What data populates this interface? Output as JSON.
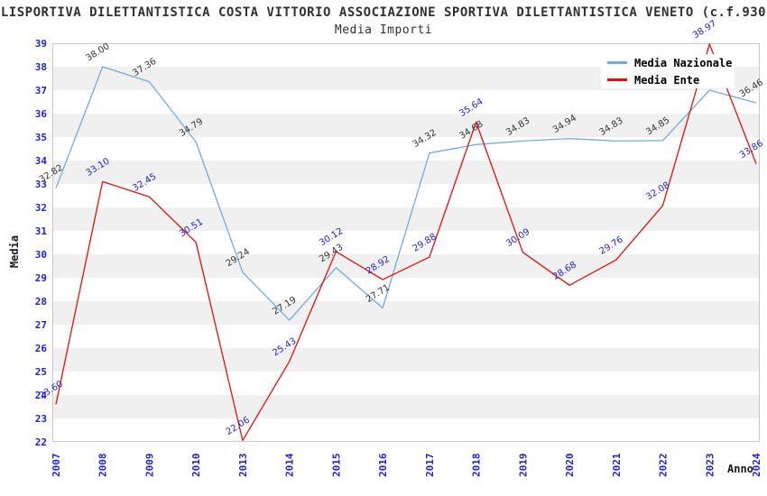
{
  "chart_data": {
    "type": "line",
    "title": "LISPORTIVA DILETTANTISTICA COSTA VITTORIO ASSOCIAZIONE SPORTIVA DILETTANTISTICA VENETO (c.f.930",
    "subtitle": "Media Importi",
    "xlabel": "Anno",
    "ylabel": "Media",
    "ylim": [
      22,
      39
    ],
    "y_ticks": [
      22,
      23,
      24,
      25,
      26,
      27,
      28,
      29,
      30,
      31,
      32,
      33,
      34,
      35,
      36,
      37,
      38,
      39
    ],
    "categories": [
      "2007",
      "2008",
      "2009",
      "2010",
      "2013",
      "2014",
      "2015",
      "2016",
      "2017",
      "2018",
      "2019",
      "2020",
      "2021",
      "2022",
      "2023",
      "2024"
    ],
    "series": [
      {
        "name": "Media Nazionale",
        "color": "#74AADF",
        "label_color": "#333333",
        "values": [
          32.82,
          38.0,
          37.36,
          34.79,
          29.24,
          27.19,
          29.43,
          27.71,
          34.32,
          34.68,
          34.83,
          34.94,
          34.83,
          34.85,
          37.0,
          36.46
        ],
        "point_labels": [
          "32.82",
          "38.00",
          "37.36",
          "34.79",
          "29.24",
          "27.19",
          "29.43",
          "27.71",
          "34.32",
          "34.68",
          "34.83",
          "34.94",
          "34.83",
          "34.85",
          null,
          "36.46"
        ]
      },
      {
        "name": "Media Ente",
        "color": "#E01010",
        "label_color": "#2222CC",
        "values": [
          23.6,
          33.1,
          32.45,
          30.51,
          22.06,
          25.43,
          30.12,
          28.92,
          29.88,
          35.64,
          30.09,
          28.68,
          29.76,
          32.08,
          38.97,
          33.86
        ],
        "point_labels": [
          "23.60",
          "33.10",
          "32.45",
          "30.51",
          "22.06",
          "25.43",
          "30.12",
          "28.92",
          "29.88",
          "35.64",
          "30.09",
          "28.68",
          "29.76",
          "32.08",
          "38.97",
          "33.86"
        ]
      }
    ],
    "legend_position": "top-right",
    "grid_bands": true,
    "band_color": "#F0F0F0",
    "frame_color": "#C8C8C8",
    "axis_tick_color": "#2222CC",
    "title_color": "#303030"
  }
}
